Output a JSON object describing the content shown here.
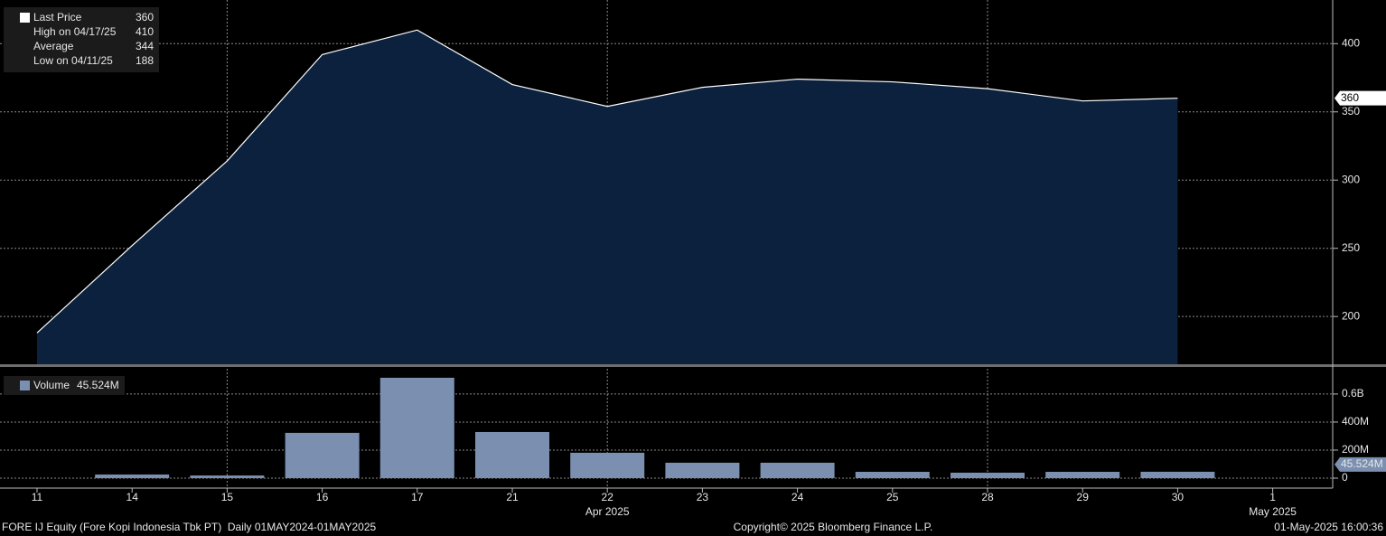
{
  "chart_data": [
    {
      "type": "area",
      "title": "Last Price",
      "categories": [
        "11",
        "14",
        "15",
        "16",
        "17",
        "21",
        "22",
        "23",
        "24",
        "25",
        "28",
        "29",
        "30",
        "1"
      ],
      "category_groups": [
        {
          "label": "Apr 2025",
          "category_index": 6
        },
        {
          "label": "May 2025",
          "category_index": 13
        }
      ],
      "series": [
        {
          "name": "Last Price",
          "color": "#ffffff",
          "fill": "#0b213d",
          "values": [
            188,
            252,
            314,
            392,
            410,
            370,
            354,
            368,
            374,
            372,
            367,
            358,
            360,
            null
          ]
        }
      ],
      "legend": [
        {
          "label": "Last Price",
          "value": 360
        },
        {
          "label": "High on 04/17/25",
          "value": 410
        },
        {
          "label": "Average",
          "value": 344
        },
        {
          "label": "Low on 04/11/25",
          "value": 188
        }
      ],
      "ylim": [
        165,
        432
      ],
      "yticks": [
        200,
        250,
        300,
        350,
        400
      ],
      "grid": true
    },
    {
      "type": "bar",
      "series": [
        {
          "name": "Volume",
          "color": "#7b8fb0",
          "values": [
            null,
            26000000,
            19000000,
            323000000,
            716000000,
            329000000,
            181000000,
            110000000,
            110000000,
            45000000,
            39000000,
            45000000,
            45524000,
            null
          ],
          "value_labels": [
            null,
            null,
            null,
            null,
            null,
            null,
            null,
            null,
            null,
            null,
            null,
            null,
            "45.524M",
            null
          ]
        }
      ],
      "ylim": [
        -71000000,
        780000000
      ],
      "yticks": [
        0,
        {
          "value": 200000000,
          "label": "200M"
        },
        {
          "value": 400000000,
          "label": "400M"
        },
        {
          "value": 600000000,
          "label": "0.6B"
        }
      ],
      "grid": true
    }
  ],
  "footer": {
    "left": "FORE IJ Equity (Fore Kopi Indonesia Tbk PT)  Daily 01MAY2024-01MAY2025",
    "center": "Copyright© 2025 Bloomberg Finance L.P.",
    "right": "01-May-2025 16:00:36"
  }
}
